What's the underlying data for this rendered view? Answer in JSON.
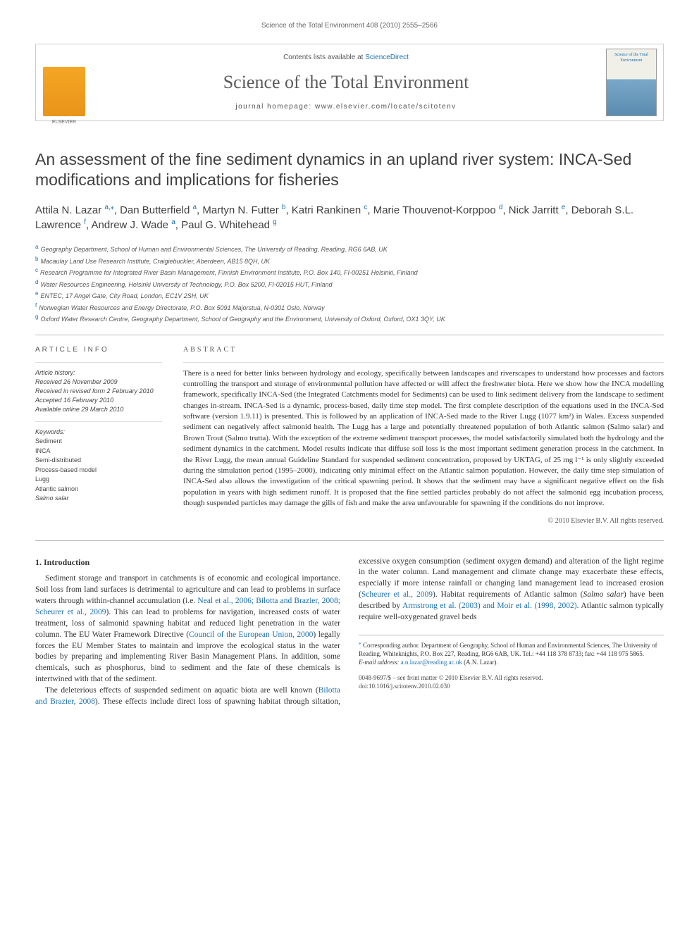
{
  "running_head": "Science of the Total Environment 408 (2010) 2555–2566",
  "banner": {
    "contents_prefix": "Contents lists available at ",
    "contents_link": "ScienceDirect",
    "journal": "Science of the Total Environment",
    "homepage_prefix": "journal homepage: ",
    "homepage_url": "www.elsevier.com/locate/scitotenv",
    "publisher_logo_alt": "Elsevier",
    "cover_title": "Science of the Total Environment"
  },
  "title": "An assessment of the fine sediment dynamics in an upland river system: INCA-Sed modifications and implications for fisheries",
  "authors": [
    {
      "name": "Attila N. Lazar",
      "aff": "a,",
      "corr": true
    },
    {
      "name": "Dan Butterfield",
      "aff": "a"
    },
    {
      "name": "Martyn N. Futter",
      "aff": "b"
    },
    {
      "name": "Katri Rankinen",
      "aff": "c"
    },
    {
      "name": "Marie Thouvenot-Korppoo",
      "aff": "d"
    },
    {
      "name": "Nick Jarritt",
      "aff": "e"
    },
    {
      "name": "Deborah S.L. Lawrence",
      "aff": "f"
    },
    {
      "name": "Andrew J. Wade",
      "aff": "a"
    },
    {
      "name": "Paul G. Whitehead",
      "aff": "g"
    }
  ],
  "affiliations": [
    {
      "key": "a",
      "text": "Geography Department, School of Human and Environmental Sciences, The University of Reading, Reading, RG6 6AB, UK"
    },
    {
      "key": "b",
      "text": "Macaulay Land Use Research Institute, Craigiebuckler, Aberdeen, AB15 8QH, UK"
    },
    {
      "key": "c",
      "text": "Research Programme for Integrated River Basin Management, Finnish Environment Institute, P.O. Box 140, FI-00251 Helsinki, Finland"
    },
    {
      "key": "d",
      "text": "Water Resources Engineering, Helsinki University of Technology, P.O. Box 5200, FI-02015 HUT, Finland"
    },
    {
      "key": "e",
      "text": "ENTEC, 17 Angel Gate, City Road, London, EC1V 2SH, UK"
    },
    {
      "key": "f",
      "text": "Norwegian Water Resources and Energy Directorate, P.O. Box 5091 Majorstua, N-0301 Oslo, Norway"
    },
    {
      "key": "g",
      "text": "Oxford Water Research Centre, Geography Department, School of Geography and the Environment, University of Oxford, Oxford, OX1 3QY, UK"
    }
  ],
  "article_info": {
    "heading": "article info",
    "history_label": "Article history:",
    "received": "Received 26 November 2009",
    "revised": "Received in revised form 2 February 2010",
    "accepted": "Accepted 16 February 2010",
    "online": "Available online 29 March 2010",
    "keywords_label": "Keywords:",
    "keywords": [
      "Sediment",
      "INCA",
      "Semi-distributed",
      "Process-based model",
      "Lugg",
      "Atlantic salmon",
      "Salmo salar"
    ]
  },
  "abstract": {
    "heading": "abstract",
    "text": "There is a need for better links between hydrology and ecology, specifically between landscapes and riverscapes to understand how processes and factors controlling the transport and storage of environmental pollution have affected or will affect the freshwater biota. Here we show how the INCA modelling framework, specifically INCA-Sed (the Integrated Catchments model for Sediments) can be used to link sediment delivery from the landscape to sediment changes in-stream. INCA-Sed is a dynamic, process-based, daily time step model. The first complete description of the equations used in the INCA-Sed software (version 1.9.11) is presented. This is followed by an application of INCA-Sed made to the River Lugg (1077 km²) in Wales. Excess suspended sediment can negatively affect salmonid health. The Lugg has a large and potentially threatened population of both Atlantic salmon (Salmo salar) and Brown Trout (Salmo trutta). With the exception of the extreme sediment transport processes, the model satisfactorily simulated both the hydrology and the sediment dynamics in the catchment. Model results indicate that diffuse soil loss is the most important sediment generation process in the catchment. In the River Lugg, the mean annual Guideline Standard for suspended sediment concentration, proposed by UKTAG, of 25 mg l⁻¹ is only slightly exceeded during the simulation period (1995–2000), indicating only minimal effect on the Atlantic salmon population. However, the daily time step simulation of INCA-Sed also allows the investigation of the critical spawning period. It shows that the sediment may have a significant negative effect on the fish population in years with high sediment runoff. It is proposed that the fine settled particles probably do not affect the salmonid egg incubation process, though suspended particles may damage the gills of fish and make the area unfavourable for spawning if the conditions do not improve.",
    "copyright": "© 2010 Elsevier B.V. All rights reserved."
  },
  "body": {
    "section_number": "1.",
    "section_title": "Introduction",
    "p1_a": "Sediment storage and transport in catchments is of economic and ecological importance. Soil loss from land surfaces is detrimental to agriculture and can lead to problems in surface waters through within-channel accumulation (i.e. ",
    "p1_ref1": "Neal et al., 2006; Bilotta and Brazier, 2008; Scheurer et al., 2009",
    "p1_b": "). This can lead to problems for navigation, increased costs of water treatment, loss of salmonid spawning habitat and reduced light penetration in the water column. The EU Water Framework Directive (",
    "p1_ref2": "Council of the European Union, 2000",
    "p1_c": ") legally forces the EU Member States to maintain and improve the ecological status in the water bodies by preparing and implementing River Basin Management Plans. In addition, some chemicals, such as phosphorus, bind to sediment and the fate of these chemicals is intertwined with that of the sediment.",
    "p2_a": "The deleterious effects of suspended sediment on aquatic biota are well known (",
    "p2_ref1": "Bilotta and Brazier, 2008",
    "p2_b": "). These effects include direct loss of spawning habitat through siltation, excessive oxygen consumption (sediment oxygen demand) and alteration of the light regime in the water column. Land management and climate change may exacerbate these effects, especially if more intense rainfall or changing land management lead to increased erosion (",
    "p2_ref2": "Scheurer et al., 2009",
    "p2_c": "). Habitat requirements of Atlantic salmon (",
    "p2_it1": "Salmo salar",
    "p2_d": ") have been described by ",
    "p2_ref3": "Armstrong et al. (2003) and Moir et al. (1998, 2002)",
    "p2_e": ". Atlantic salmon typically require well-oxygenated gravel beds"
  },
  "footnote": {
    "star": "⁎",
    "text_a": " Corresponding author. Department of Geography, School of Human and Environmental Sciences, The University of Reading, Whiteknights, P.O. Box 227, Reading, RG6 6AB, UK. Tel.: +44 118 378 8733; fax: +44 118 975 5865.",
    "email_label": "E-mail address: ",
    "email": "a.n.lazar@reading.ac.uk",
    "email_suffix": " (A.N. Lazar)."
  },
  "doiblock": {
    "issn": "0048-9697/$ – see front matter © 2010 Elsevier B.V. All rights reserved.",
    "doi": "doi:10.1016/j.scitotenv.2010.02.030"
  },
  "colors": {
    "link": "#1a6fb0",
    "text": "#333333",
    "muted": "#666666",
    "rule": "#bbbbbb"
  }
}
